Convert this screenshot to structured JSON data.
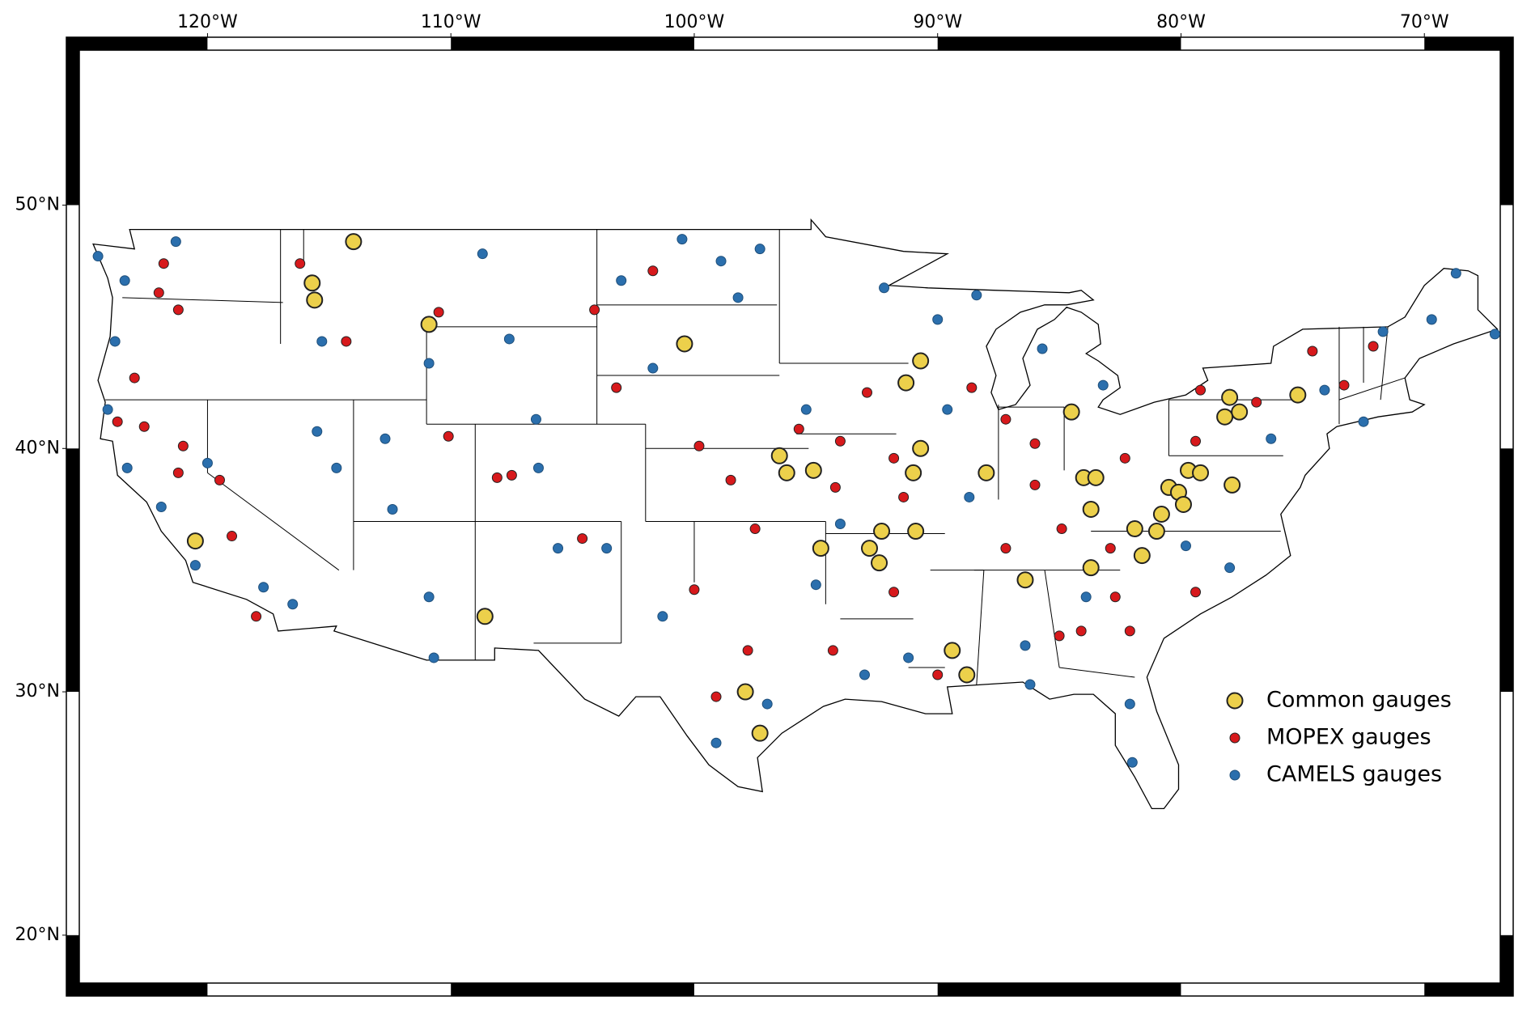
{
  "chart_data": {
    "type": "map",
    "xlim": [
      -125.8,
      -66.35
    ],
    "ylim": [
      17.5,
      56.9
    ],
    "xticks": [
      {
        "value": -120,
        "label": "120°W"
      },
      {
        "value": -110,
        "label": "110°W"
      },
      {
        "value": -100,
        "label": "100°W"
      },
      {
        "value": -90,
        "label": "90°W"
      },
      {
        "value": -80,
        "label": "80°W"
      },
      {
        "value": -70,
        "label": "70°W"
      }
    ],
    "yticks": [
      {
        "value": 20,
        "label": "20°N"
      },
      {
        "value": 30,
        "label": "30°N"
      },
      {
        "value": 40,
        "label": "40°N"
      },
      {
        "value": 50,
        "label": "50°N"
      }
    ],
    "legend": "lower right",
    "series": [
      {
        "name": "Common gauges",
        "color": "#ecd04b",
        "x": [
          -114.0,
          -115.7,
          -115.6,
          -110.9,
          -100.4,
          -90.7,
          -91.3,
          -84.5,
          -78.0,
          -75.2,
          -77.6,
          -78.2,
          -90.7,
          -96.5,
          -96.2,
          -95.1,
          -91.0,
          -88.0,
          -84.0,
          -83.5,
          -80.5,
          -79.7,
          -79.2,
          -77.9,
          -83.7,
          -80.1,
          -79.9,
          -80.8,
          -81.9,
          -81.0,
          -92.3,
          -90.9,
          -92.8,
          -94.8,
          -92.4,
          -81.6,
          -83.7,
          -86.4,
          -120.5,
          -108.6,
          -89.4,
          -88.8,
          -97.9,
          -97.3
        ],
        "y": [
          48.5,
          46.8,
          46.1,
          45.1,
          44.3,
          43.6,
          42.7,
          41.5,
          42.1,
          42.2,
          41.5,
          41.3,
          40.0,
          39.7,
          39.0,
          39.1,
          39.0,
          39.0,
          38.8,
          38.8,
          38.4,
          39.1,
          39.0,
          38.5,
          37.5,
          38.2,
          37.7,
          37.3,
          36.7,
          36.6,
          36.6,
          36.6,
          35.9,
          35.9,
          35.3,
          35.6,
          35.1,
          34.6,
          36.2,
          33.1,
          31.7,
          30.7,
          30.0,
          28.3
        ]
      },
      {
        "name": "MOPEX gauges",
        "color": "#d7191c",
        "x": [
          -121.8,
          -122.0,
          -121.2,
          -123.0,
          -123.7,
          -122.6,
          -121.0,
          -121.2,
          -119.5,
          -119.0,
          -118.0,
          -116.2,
          -114.3,
          -110.5,
          -110.1,
          -108.1,
          -107.5,
          -104.6,
          -104.1,
          -103.2,
          -101.7,
          -99.8,
          -98.5,
          -97.5,
          -95.7,
          -94.0,
          -94.2,
          -91.8,
          -91.4,
          -92.9,
          -88.6,
          -87.2,
          -86.0,
          -86.0,
          -87.2,
          -84.9,
          -82.9,
          -82.3,
          -79.2,
          -79.4,
          -76.9,
          -74.6,
          -73.3,
          -72.1,
          -82.7,
          -85.0,
          -91.8,
          -90.0,
          -94.3,
          -99.1,
          -97.8,
          -100.0,
          -79.4,
          -82.1,
          -84.1
        ],
        "y": [
          47.6,
          46.4,
          45.7,
          42.9,
          41.1,
          40.9,
          40.1,
          39.0,
          38.7,
          36.4,
          33.1,
          47.6,
          44.4,
          45.6,
          40.5,
          38.8,
          38.9,
          36.3,
          45.7,
          42.5,
          47.3,
          40.1,
          38.7,
          36.7,
          40.8,
          40.3,
          38.4,
          39.6,
          38.0,
          42.3,
          42.5,
          41.2,
          40.2,
          38.5,
          35.9,
          36.7,
          35.9,
          39.6,
          42.4,
          40.3,
          41.9,
          44.0,
          42.6,
          44.2,
          33.9,
          32.3,
          34.1,
          30.7,
          31.7,
          29.8,
          31.7,
          34.2,
          34.1,
          32.5,
          32.5
        ]
      },
      {
        "name": "CAMELS gauges",
        "color": "#2b6fad",
        "x": [
          -124.5,
          -123.4,
          -121.3,
          -123.8,
          -124.1,
          -123.3,
          -121.9,
          -120.0,
          -120.5,
          -117.7,
          -116.5,
          -115.3,
          -115.5,
          -114.7,
          -112.7,
          -112.4,
          -110.9,
          -110.9,
          -110.7,
          -108.7,
          -107.6,
          -106.5,
          -106.4,
          -105.6,
          -103.6,
          -103.0,
          -100.5,
          -98.9,
          -98.2,
          -101.7,
          -97.3,
          -95.4,
          -94.0,
          -95.0,
          -101.3,
          -99.1,
          -97.0,
          -92.2,
          -90.0,
          -89.6,
          -88.7,
          -88.4,
          -85.7,
          -83.2,
          -83.9,
          -86.4,
          -86.2,
          -82.1,
          -82.0,
          -79.8,
          -78.0,
          -76.3,
          -74.1,
          -71.7,
          -69.7,
          -68.7,
          -67.1,
          -72.5,
          -91.2,
          -93.0
        ],
        "y": [
          47.9,
          46.9,
          48.5,
          44.4,
          41.6,
          39.2,
          37.6,
          39.4,
          35.2,
          34.3,
          33.6,
          44.4,
          40.7,
          39.2,
          40.4,
          37.5,
          43.5,
          33.9,
          31.4,
          48.0,
          44.5,
          41.2,
          39.2,
          35.9,
          35.9,
          46.9,
          48.6,
          47.7,
          46.2,
          43.3,
          48.2,
          41.6,
          36.9,
          34.4,
          33.1,
          27.9,
          29.5,
          46.6,
          45.3,
          41.6,
          38.0,
          46.3,
          44.1,
          42.6,
          33.9,
          31.9,
          30.3,
          29.5,
          27.1,
          36.0,
          35.1,
          40.4,
          42.4,
          44.8,
          45.3,
          47.2,
          44.7,
          41.1,
          31.4,
          30.7
        ]
      }
    ]
  }
}
